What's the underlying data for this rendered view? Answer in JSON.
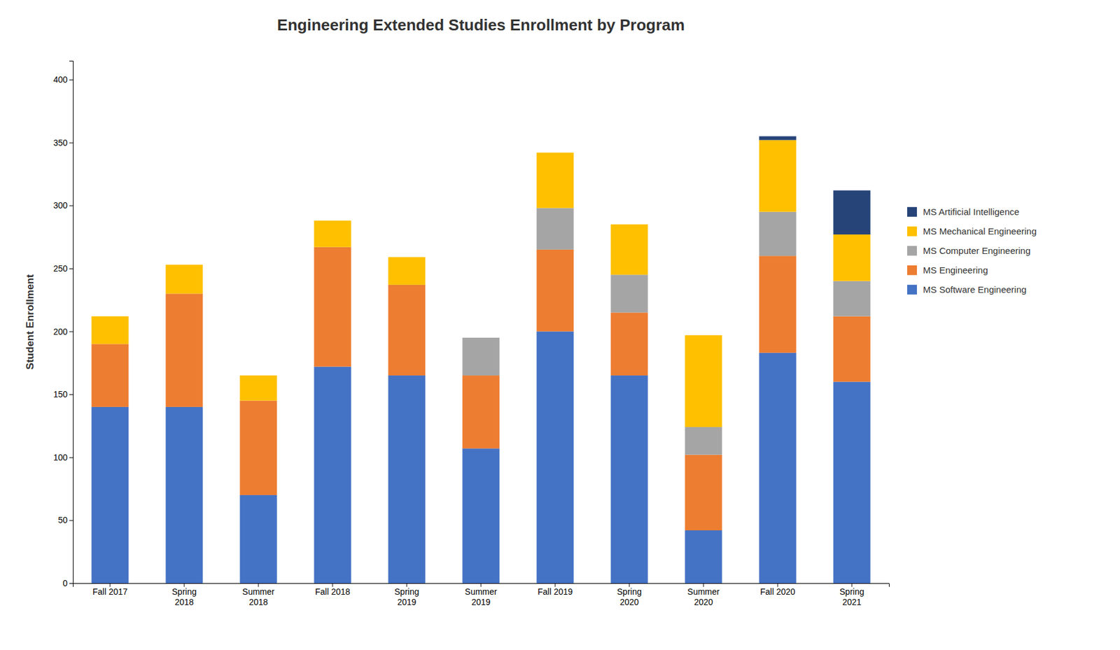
{
  "chart_data": {
    "type": "bar",
    "stacked": true,
    "title": "Engineering Extended Studies Enrollment by Program",
    "ylabel": "Student Enrollment",
    "categories": [
      "Fall 2017",
      "Spring\n2018",
      "Summer\n2018",
      "Fall 2018",
      "Spring\n2019",
      "Summer\n2019",
      "Fall 2019",
      "Spring\n2020",
      "Summer\n2020",
      "Fall 2020",
      "Spring\n2021"
    ],
    "series": [
      {
        "name": "MS Software Engineering",
        "color": "#4472C4",
        "values": [
          140,
          140,
          70,
          172,
          165,
          107,
          200,
          165,
          42,
          183,
          160
        ]
      },
      {
        "name": "MS Engineering",
        "color": "#ED7D31",
        "values": [
          50,
          90,
          75,
          95,
          72,
          58,
          65,
          50,
          60,
          77,
          52
        ]
      },
      {
        "name": "MS Computer Engineering",
        "color": "#A5A5A5",
        "values": [
          0,
          0,
          0,
          0,
          0,
          30,
          33,
          30,
          22,
          35,
          28
        ]
      },
      {
        "name": "MS Mechanical Engineering",
        "color": "#FFC000",
        "values": [
          22,
          23,
          20,
          21,
          22,
          0,
          44,
          40,
          73,
          57,
          37
        ]
      },
      {
        "name": "MS Artificial Intelligence",
        "color": "#264478",
        "values": [
          0,
          0,
          0,
          0,
          0,
          0,
          0,
          0,
          0,
          3,
          35
        ]
      }
    ],
    "ylim": [
      0,
      415
    ],
    "yticks": [
      0,
      50,
      100,
      150,
      200,
      250,
      300,
      350,
      400
    ],
    "grid": false,
    "legend": "right"
  }
}
